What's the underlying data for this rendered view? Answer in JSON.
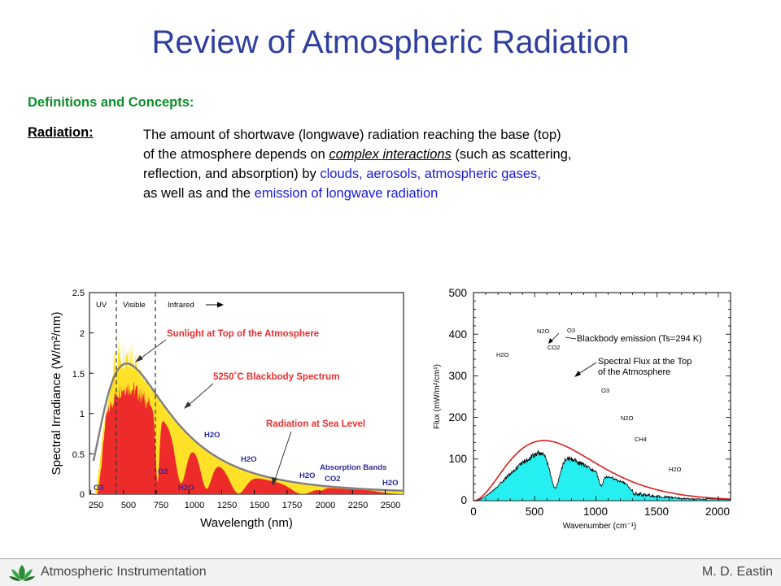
{
  "title": "Review of Atmospheric Radiation",
  "subheading": "Definitions and Concepts:",
  "term": "Radiation:",
  "paragraph": {
    "l1": "The amount of shortwave (longwave) radiation reaching the base (top)",
    "l2_a": "of the atmosphere depends on ",
    "l2_b": "complex interactions",
    "l2_c": " (such as scattering,",
    "l3_a": "reflection, and absorption) by ",
    "l3_b": "clouds, aerosols, atmospheric gases,",
    "l4_a": "as well as and the ",
    "l4_b": "emission of longwave radiation"
  },
  "left_chart": {
    "ylabel": "Spectral Irradiance (W/m²/nm)",
    "xlabel": "Wavelength (nm)",
    "yticks": [
      "0",
      "0.5",
      "1",
      "1.5",
      "2",
      "2.5"
    ],
    "xticks": [
      "250",
      "500",
      "750",
      "1000",
      "1250",
      "1500",
      "1750",
      "2000",
      "2250",
      "2500"
    ],
    "region_uv": "UV",
    "region_visible": "Visible",
    "region_infrared": "Infrared",
    "label_sunlight": "Sunlight at Top of the Atmosphere",
    "label_blackbody": "5250˚C Blackbody Spectrum",
    "label_sealevel": "Radiation at Sea Level",
    "label_absorption": "Absorption Bands",
    "gas_o3": "O3",
    "gas_o2": "O2",
    "gas_h2o": "H2O",
    "gas_co2": "CO2",
    "colors": {
      "toa": "#ffe228",
      "sea": "#ee2b2b",
      "curve": "#7f7f7f",
      "label": "#e83030",
      "gas": "#2a2a9a"
    }
  },
  "right_chart": {
    "ylabel": "Flux (mW/m²/cm¹)",
    "xlabel": "Wavenumber (cm⁻¹)",
    "yticks": [
      "0",
      "100",
      "200",
      "300",
      "400",
      "500"
    ],
    "xticks": [
      "0",
      "500",
      "1000",
      "1500",
      "2000"
    ],
    "label_blackbody": "Blackbody emission (Ts=294 K)",
    "label_flux_1": "Spectral Flux at the Top",
    "label_flux_2": "of the Atmosphere",
    "gas_n2o": "N2O",
    "gas_o3": "O3",
    "gas_co2": "CO2",
    "gas_h2o": "H2O",
    "gas_ch4": "CH4",
    "colors": {
      "fill": "#25eff0",
      "curve": "#d62020"
    }
  },
  "footer": {
    "left": "Atmospheric Instrumentation",
    "right": "M. D. Eastin"
  }
}
